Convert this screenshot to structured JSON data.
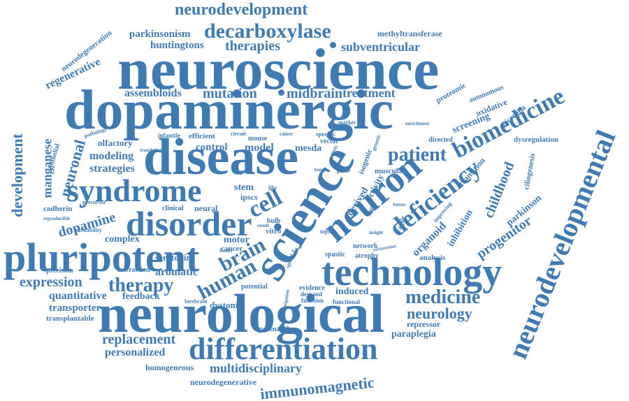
{
  "word_color": "#3f7bb2",
  "background": "#ffffff",
  "words": [
    "neuroscience",
    "dopaminergic",
    "disease",
    "neurological",
    "technology",
    "science",
    "neuron",
    "pluripotent",
    "syndrome",
    "disorder",
    "differentiation",
    "neurodevelopmental",
    "biomedicine",
    "deficiency",
    "decarboxylase",
    "neurodevelopment",
    "therapy",
    "human",
    "brain",
    "cell",
    "patient",
    "medicine",
    "neurology",
    "therapies",
    "mutation",
    "midbrain",
    "treatment",
    "assembloids",
    "parkinsonism",
    "huntingtons",
    "methyltransferase",
    "subventricular",
    "regenerative",
    "neurodegeneration",
    "development",
    "manganese",
    "neuronal",
    "dopamine",
    "modeling",
    "strategies",
    "expression",
    "quantitative",
    "transporter",
    "transplantable",
    "feedback",
    "replacement",
    "personalized",
    "homogeneous",
    "multidisciplinary",
    "neurodegenerative",
    "immunomagnetic",
    "paraplegia",
    "repressor",
    "progenitor",
    "parkinson",
    "childhood",
    "inhibition",
    "organoid",
    "analysis",
    "aromatic",
    "serotonin",
    "complex",
    "dystonia",
    "induced",
    "evidence",
    "interaction",
    "precision",
    "control",
    "model",
    "mesda",
    "olfactory",
    "cadherin",
    "epithelial",
    "clinical",
    "neural",
    "motor",
    "stem",
    "ipscs",
    "cancer",
    "vitro",
    "bulb",
    "derived",
    "activity",
    "muscular",
    "isogenic",
    "network",
    "atrophy",
    "spastic",
    "functional",
    "function",
    "demand",
    "potential",
    "postnatal",
    "forebrain",
    "excitability",
    "reproducible",
    "pathology",
    "infantile",
    "efficient",
    "circuit",
    "mouse",
    "cause",
    "specific",
    "vector",
    "marker",
    "directed",
    "screening",
    "oxidative",
    "autonomous",
    "proteomic",
    "microglia",
    "dysregulation",
    "ciliogenesis",
    "transition",
    "enrichment",
    "translation",
    "precursor",
    "future",
    "improving",
    "fragile",
    "plate",
    "genetic",
    "loop",
    "study",
    "spinal",
    "topic",
    "optic",
    "life",
    "motile",
    "label",
    "family",
    "result",
    "investigation",
    "restoration",
    "insight"
  ]
}
